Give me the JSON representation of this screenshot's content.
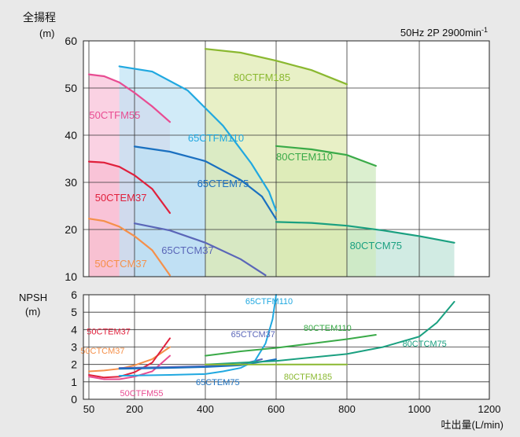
{
  "chart_data": {
    "type": "line",
    "condition_label": "50Hz 2P 2900min",
    "condition_superscript": "-1",
    "xlabel": "吐出量(L/min)",
    "x_ticks": [
      "50",
      "200",
      "400",
      "600",
      "800",
      "1000",
      "1200"
    ],
    "x_tick_values": [
      50,
      200,
      400,
      600,
      800,
      1000,
      1200
    ],
    "head": {
      "ylabel_1": "全揚程",
      "ylabel_2": "(m)",
      "ylim": [
        10,
        60
      ],
      "y_ticks": [
        10,
        20,
        30,
        40,
        50,
        60
      ],
      "grid": true,
      "regions": [
        {
          "name": "50CTCM37",
          "color": "#f5904a",
          "fill": "#fbd0b0",
          "curve": [
            [
              50,
              22.3
            ],
            [
              100,
              21.8
            ],
            [
              150,
              20.6
            ],
            [
              200,
              18.6
            ],
            [
              250,
              15.6
            ],
            [
              300,
              10.3
            ]
          ],
          "label_at": [
            155,
            12.0
          ]
        },
        {
          "name": "50CTEM37",
          "color": "#e0203c",
          "fill": "#f6b6c0",
          "curve": [
            [
              50,
              34.4
            ],
            [
              100,
              34.2
            ],
            [
              150,
              33.3
            ],
            [
              200,
              31.5
            ],
            [
              250,
              28.6
            ],
            [
              300,
              23.5
            ]
          ],
          "label_at": [
            155,
            26.0
          ]
        },
        {
          "name": "50CTFM55",
          "color": "#e84c92",
          "fill": "#f8c0d8",
          "curve": [
            [
              50,
              52.9
            ],
            [
              100,
              52.5
            ],
            [
              150,
              51.2
            ],
            [
              200,
              49.0
            ],
            [
              250,
              46.1
            ],
            [
              300,
              42.8
            ]
          ],
          "label_at": [
            135,
            43.5
          ]
        },
        {
          "name": "65CTCM37",
          "color": "#5a66b8",
          "fill": "#c8cbea",
          "curve": [
            [
              200,
              21.3
            ],
            [
              300,
              19.8
            ],
            [
              400,
              17.2
            ],
            [
              500,
              13.7
            ],
            [
              570,
              10.3
            ]
          ],
          "label_at": [
            350,
            14.8
          ]
        },
        {
          "name": "65CTEM75",
          "color": "#1a70c0",
          "fill": "#b7d7f1",
          "curve": [
            [
              200,
              37.6
            ],
            [
              300,
              36.5
            ],
            [
              400,
              34.5
            ],
            [
              500,
              30.5
            ],
            [
              560,
              27.0
            ],
            [
              600,
              22.2
            ]
          ],
          "label_at": [
            450,
            29.0
          ]
        },
        {
          "name": "65CTFM110",
          "color": "#20a8e0",
          "fill": "#bfe3f5",
          "curve": [
            [
              150,
              54.6
            ],
            [
              250,
              53.5
            ],
            [
              350,
              49.5
            ],
            [
              450,
              42.0
            ],
            [
              530,
              34.0
            ],
            [
              580,
              28.0
            ],
            [
              600,
              24.0
            ]
          ],
          "label_at": [
            430,
            38.7
          ]
        },
        {
          "name": "80CTCM75",
          "color": "#1aa080",
          "fill": "#bfe3d8",
          "curve": [
            [
              600,
              21.6
            ],
            [
              700,
              21.4
            ],
            [
              800,
              20.8
            ],
            [
              900,
              19.8
            ],
            [
              1000,
              18.6
            ],
            [
              1100,
              17.2
            ]
          ],
          "label_at": [
            880,
            15.8
          ]
        },
        {
          "name": "80CTEM110",
          "color": "#3aaa48",
          "fill": "#cde9bc",
          "curve": [
            [
              600,
              37.7
            ],
            [
              700,
              37.0
            ],
            [
              800,
              35.8
            ],
            [
              880,
              33.5
            ]
          ],
          "label_at": [
            680,
            34.7
          ]
        },
        {
          "name": "80CTFM185",
          "color": "#8ab830",
          "fill": "#dfeab0",
          "curve": [
            [
              400,
              58.3
            ],
            [
              500,
              57.5
            ],
            [
              600,
              55.8
            ],
            [
              700,
              53.8
            ],
            [
              800,
              50.8
            ]
          ],
          "label_at": [
            560,
            51.5
          ]
        }
      ]
    },
    "npsh": {
      "ylabel_1": "NPSH",
      "ylabel_2": "(m)",
      "ylim": [
        0,
        6
      ],
      "y_ticks": [
        0,
        1,
        2,
        3,
        4,
        5,
        6
      ],
      "grid": true,
      "series": [
        {
          "name": "50CTCM37",
          "color": "#f5904a",
          "values": [
            [
              50,
              1.6
            ],
            [
              100,
              1.65
            ],
            [
              150,
              1.75
            ],
            [
              200,
              1.95
            ],
            [
              250,
              2.3
            ],
            [
              300,
              3.0
            ]
          ],
          "label_at": [
            95,
            2.8
          ]
        },
        {
          "name": "50CTEM37",
          "color": "#e0203c",
          "values": [
            [
              50,
              1.4
            ],
            [
              100,
              1.25
            ],
            [
              150,
              1.3
            ],
            [
              200,
              1.55
            ],
            [
              250,
              2.1
            ],
            [
              300,
              3.5
            ]
          ],
          "label_at": [
            115,
            3.9
          ]
        },
        {
          "name": "50CTFM55",
          "color": "#e84c92",
          "values": [
            [
              50,
              1.3
            ],
            [
              100,
              1.15
            ],
            [
              150,
              1.15
            ],
            [
              200,
              1.3
            ],
            [
              250,
              1.6
            ],
            [
              300,
              2.5
            ]
          ],
          "label_at": [
            220,
            0.35
          ]
        },
        {
          "name": "65CTCM37",
          "color": "#5a66b8",
          "values": [
            [
              150,
              1.8
            ],
            [
              300,
              1.85
            ],
            [
              400,
              1.9
            ],
            [
              500,
              2.0
            ],
            [
              560,
              2.3
            ]
          ],
          "label_at": [
            535,
            3.75
          ]
        },
        {
          "name": "65CTEM75",
          "color": "#1a70c0",
          "values": [
            [
              150,
              1.75
            ],
            [
              300,
              1.8
            ],
            [
              400,
              1.85
            ],
            [
              500,
              1.95
            ],
            [
              600,
              2.3
            ]
          ],
          "label_at": [
            435,
            1.0
          ]
        },
        {
          "name": "65CTFM110",
          "color": "#20a8e0",
          "values": [
            [
              150,
              1.35
            ],
            [
              300,
              1.4
            ],
            [
              400,
              1.45
            ],
            [
              450,
              1.6
            ],
            [
              500,
              1.8
            ],
            [
              540,
              2.2
            ],
            [
              570,
              3.2
            ],
            [
              590,
              4.6
            ],
            [
              600,
              6.0
            ]
          ],
          "label_at": [
            580,
            5.65
          ]
        },
        {
          "name": "80CTCM75",
          "color": "#1aa080",
          "values": [
            [
              400,
              2.0
            ],
            [
              600,
              2.2
            ],
            [
              800,
              2.6
            ],
            [
              900,
              3.0
            ],
            [
              1000,
              3.6
            ],
            [
              1050,
              4.4
            ],
            [
              1100,
              5.6
            ]
          ],
          "label_at": [
            1015,
            3.2
          ]
        },
        {
          "name": "80CTEM110",
          "color": "#3aaa48",
          "values": [
            [
              400,
              2.5
            ],
            [
              500,
              2.75
            ],
            [
              600,
              2.95
            ],
            [
              700,
              3.2
            ],
            [
              800,
              3.45
            ],
            [
              880,
              3.7
            ]
          ],
          "label_at": [
            745,
            4.1
          ]
        },
        {
          "name": "80CTFM185",
          "color": "#8ab830",
          "values": [
            [
              400,
              2.0
            ],
            [
              500,
              2.0
            ],
            [
              600,
              2.0
            ],
            [
              700,
              2.0
            ],
            [
              800,
              2.0
            ]
          ],
          "label_at": [
            690,
            1.3
          ]
        }
      ]
    }
  }
}
